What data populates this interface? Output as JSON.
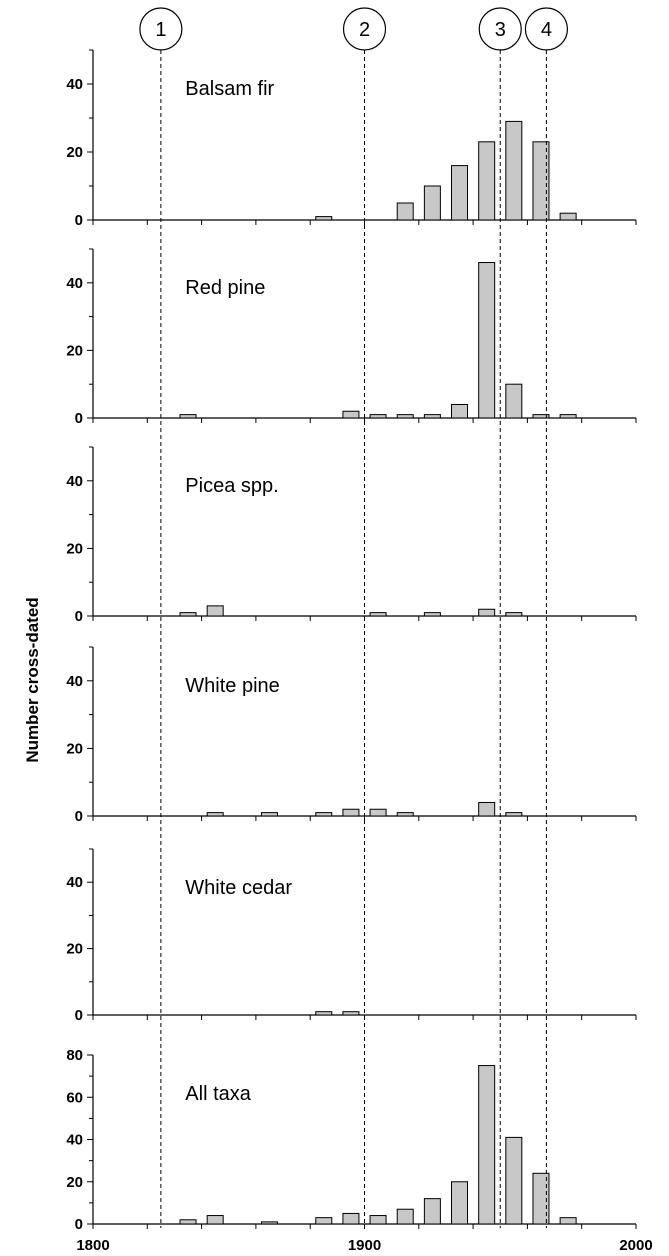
{
  "chart_data": {
    "type": "bar",
    "ylabel": "Number cross-dated",
    "xlim": [
      1800,
      2000
    ],
    "xticks": [
      1800,
      1900,
      2000
    ],
    "bin_width": 10,
    "bar_color": "#c8c8c8",
    "events": [
      {
        "label": "1",
        "year": 1825
      },
      {
        "label": "2",
        "year": 1900
      },
      {
        "label": "3",
        "year": 1950
      },
      {
        "label": "4",
        "year": 1967
      }
    ],
    "panels": [
      {
        "title": "Balsam fir",
        "ylim": [
          0,
          50
        ],
        "yticks": [
          0,
          20,
          40
        ],
        "x": [
          1880,
          1910,
          1920,
          1930,
          1940,
          1950,
          1960,
          1970
        ],
        "values": [
          1,
          5,
          10,
          16,
          23,
          29,
          23,
          2
        ]
      },
      {
        "title": "Red pine",
        "ylim": [
          0,
          50
        ],
        "yticks": [
          0,
          20,
          40
        ],
        "x": [
          1830,
          1890,
          1900,
          1910,
          1920,
          1930,
          1940,
          1950,
          1960,
          1970
        ],
        "values": [
          1,
          2,
          1,
          1,
          1,
          4,
          46,
          10,
          1,
          1
        ]
      },
      {
        "title": "Picea spp.",
        "ylim": [
          0,
          50
        ],
        "yticks": [
          0,
          20,
          40
        ],
        "x": [
          1830,
          1840,
          1900,
          1920,
          1940,
          1950
        ],
        "values": [
          1,
          3,
          1,
          1,
          2,
          1
        ]
      },
      {
        "title": "White pine",
        "ylim": [
          0,
          50
        ],
        "yticks": [
          0,
          20,
          40
        ],
        "x": [
          1840,
          1860,
          1880,
          1890,
          1900,
          1910,
          1940,
          1950
        ],
        "values": [
          1,
          1,
          1,
          2,
          2,
          1,
          4,
          1
        ]
      },
      {
        "title": "White cedar",
        "ylim": [
          0,
          50
        ],
        "yticks": [
          0,
          20,
          40
        ],
        "x": [
          1880,
          1890
        ],
        "values": [
          1,
          1
        ]
      },
      {
        "title": "All taxa",
        "ylim": [
          0,
          80
        ],
        "yticks": [
          0,
          20,
          40,
          60,
          80
        ],
        "x": [
          1830,
          1840,
          1860,
          1880,
          1890,
          1900,
          1910,
          1920,
          1930,
          1940,
          1950,
          1960,
          1970
        ],
        "values": [
          2,
          4,
          1,
          3,
          5,
          4,
          7,
          12,
          20,
          75,
          41,
          24,
          3
        ]
      }
    ]
  }
}
